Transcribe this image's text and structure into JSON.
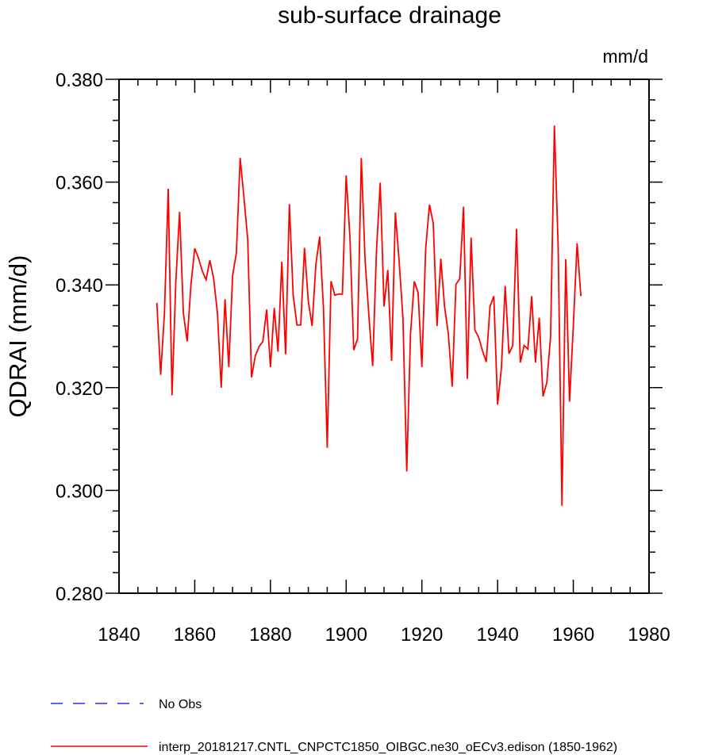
{
  "chart_data": {
    "type": "line",
    "title": "sub-surface drainage",
    "units": "mm/d",
    "ylabel": "QDRAI  (mm/d)",
    "xlabel": "",
    "xlim": [
      1840,
      1980
    ],
    "ylim": [
      0.28,
      0.38
    ],
    "xticks": [
      1840,
      1860,
      1880,
      1900,
      1920,
      1940,
      1960,
      1980
    ],
    "xtick_labels": [
      "1840",
      "1860",
      "1880",
      "1900",
      "1920",
      "1940",
      "1960",
      "1980"
    ],
    "yticks": [
      0.28,
      0.3,
      0.32,
      0.34,
      0.36,
      0.38
    ],
    "ytick_labels": [
      "0.280",
      "0.300",
      "0.320",
      "0.340",
      "0.360",
      "0.380"
    ],
    "grid": false,
    "legend_placement": "bottom-left",
    "series": [
      {
        "name": "interp_20181217.CNTL_CNPCTC1850_OIBGC.ne30_oECv3.edison (1850-1962)",
        "color": "#ff0000",
        "style": "solid",
        "x_start": 1850,
        "x_step": 1,
        "values": [
          0.3365,
          0.3225,
          0.3345,
          0.3587,
          0.3185,
          0.3405,
          0.3542,
          0.3345,
          0.329,
          0.34,
          0.3471,
          0.3452,
          0.3427,
          0.341,
          0.3448,
          0.3412,
          0.3345,
          0.32,
          0.3372,
          0.324,
          0.3418,
          0.3462,
          0.3647,
          0.357,
          0.3488,
          0.322,
          0.3262,
          0.328,
          0.329,
          0.3352,
          0.324,
          0.3355,
          0.327,
          0.3445,
          0.3265,
          0.3557,
          0.338,
          0.3322,
          0.3322,
          0.3472,
          0.3368,
          0.332,
          0.344,
          0.3494,
          0.3355,
          0.3083,
          0.3407,
          0.338,
          0.3382,
          0.3382,
          0.3613,
          0.3492,
          0.3273,
          0.3295,
          0.3647,
          0.3448,
          0.334,
          0.3242,
          0.3465,
          0.3599,
          0.3358,
          0.3429,
          0.3252,
          0.3541,
          0.3445,
          0.3335,
          0.3037,
          0.3305,
          0.3407,
          0.3385,
          0.324,
          0.347,
          0.3556,
          0.352,
          0.332,
          0.3451,
          0.3357,
          0.3304,
          0.3202,
          0.3401,
          0.3412,
          0.3552,
          0.3217,
          0.3492,
          0.3312,
          0.3298,
          0.3272,
          0.325,
          0.3358,
          0.3378,
          0.3167,
          0.3237,
          0.3398,
          0.3266,
          0.3282,
          0.3509,
          0.3249,
          0.3282,
          0.3275,
          0.3378,
          0.3249,
          0.3336,
          0.3183,
          0.321,
          0.33,
          0.371,
          0.3472,
          0.297,
          0.345,
          0.3173,
          0.332,
          0.3481,
          0.3378
        ]
      },
      {
        "name": "No Obs",
        "color": "#0000ff",
        "style": "dashed",
        "values": []
      }
    ]
  }
}
